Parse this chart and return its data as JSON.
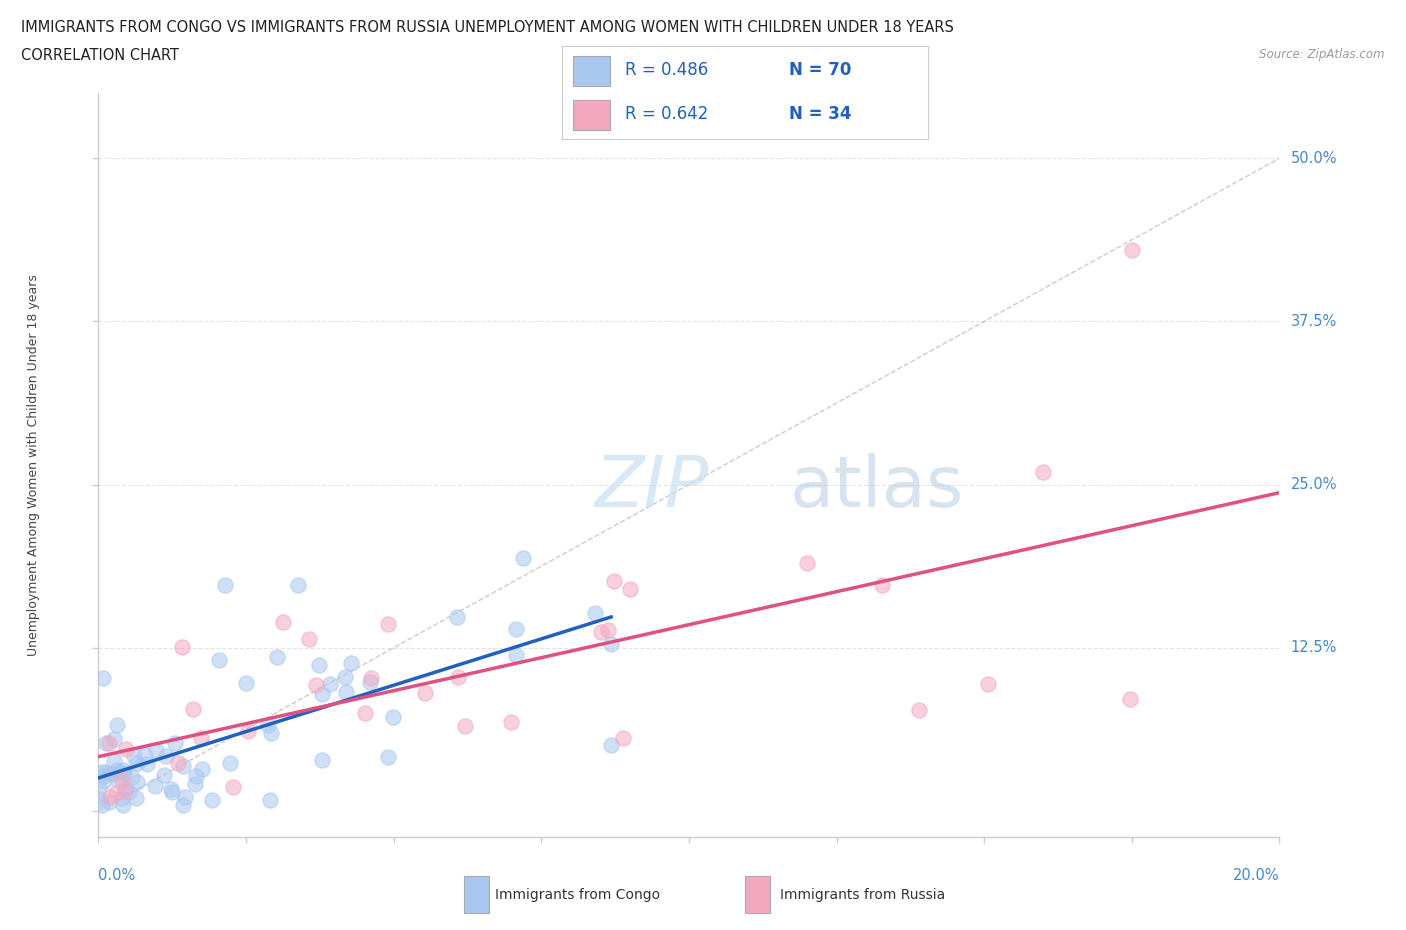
{
  "title_line1": "IMMIGRANTS FROM CONGO VS IMMIGRANTS FROM RUSSIA UNEMPLOYMENT AMONG WOMEN WITH CHILDREN UNDER 18 YEARS",
  "title_line2": "CORRELATION CHART",
  "source_text": "Source: ZipAtlas.com",
  "ylabel_label": "Unemployment Among Women with Children Under 18 years",
  "ytick_vals": [
    0.0,
    0.125,
    0.25,
    0.375,
    0.5
  ],
  "ytick_labels": [
    "",
    "12.5%",
    "25.0%",
    "37.5%",
    "50.0%"
  ],
  "xlim": [
    0.0,
    0.2
  ],
  "ylim": [
    -0.02,
    0.55
  ],
  "watermark_zip": "ZIP",
  "watermark_atlas": "atlas",
  "legend_R1": "R = 0.486",
  "legend_N1": "N = 70",
  "legend_R2": "R = 0.642",
  "legend_N2": "N = 34",
  "congo_color": "#a8c8f0",
  "russia_color": "#f4a8c0",
  "congo_line_color": "#2060c0",
  "russia_line_color": "#e05080",
  "diag_line_color": "#aaaaaa",
  "congo_N": 70,
  "russia_N": 34,
  "legend_text_color": "#2060c0",
  "ytick_color": "#4488cc",
  "xtick_color": "#4488cc",
  "grid_color": "#dddddd",
  "axis_color": "#cccccc"
}
